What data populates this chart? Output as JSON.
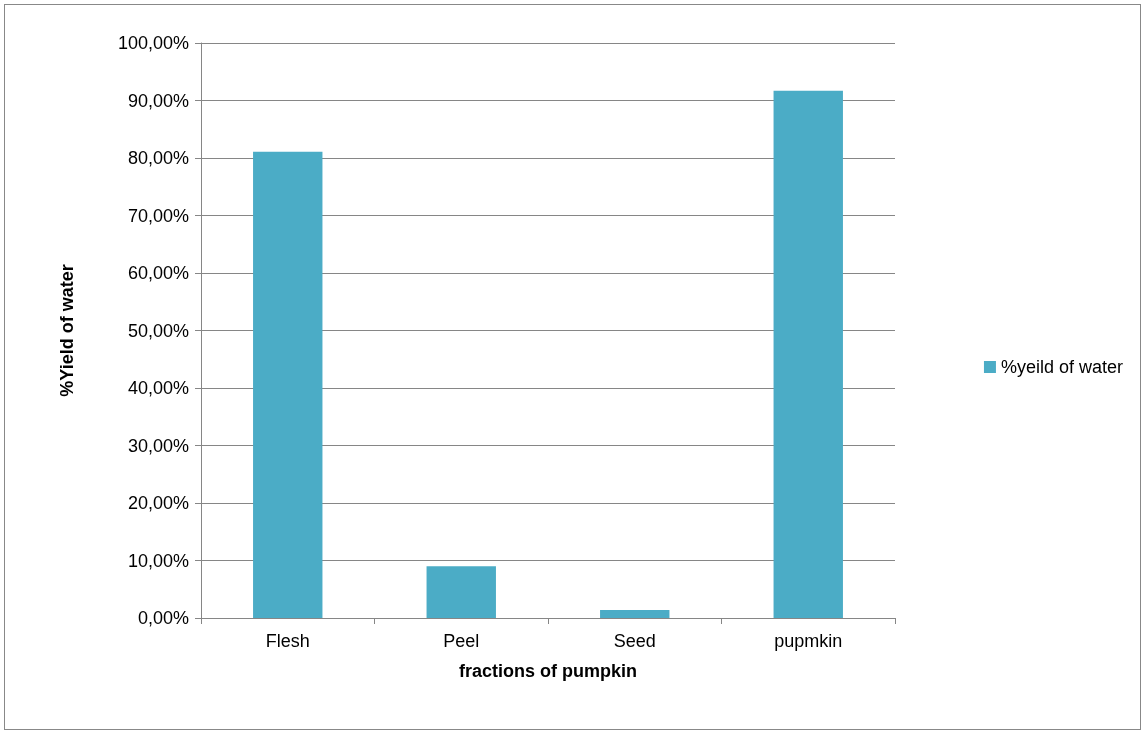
{
  "chart_data": {
    "type": "bar",
    "xlabel": "fractions of pumpkin",
    "ylabel": "%Yield of water",
    "categories": [
      "Flesh",
      "Peel",
      "Seed",
      "pupmkin"
    ],
    "series": [
      {
        "name": "%yeild of water",
        "color": "#4bacc6",
        "values": [
          81.1,
          9.0,
          1.4,
          91.7
        ]
      }
    ],
    "ylim": [
      0,
      100
    ],
    "yticks": [
      {
        "value": 0,
        "label": "0,00%"
      },
      {
        "value": 10,
        "label": "10,00%"
      },
      {
        "value": 20,
        "label": "20,00%"
      },
      {
        "value": 30,
        "label": "30,00%"
      },
      {
        "value": 40,
        "label": "40,00%"
      },
      {
        "value": 50,
        "label": "50,00%"
      },
      {
        "value": 60,
        "label": "60,00%"
      },
      {
        "value": 70,
        "label": "70,00%"
      },
      {
        "value": 80,
        "label": "80,00%"
      },
      {
        "value": 90,
        "label": "90,00%"
      },
      {
        "value": 100,
        "label": "100,00%"
      }
    ],
    "grid": "y",
    "legend": "right"
  }
}
